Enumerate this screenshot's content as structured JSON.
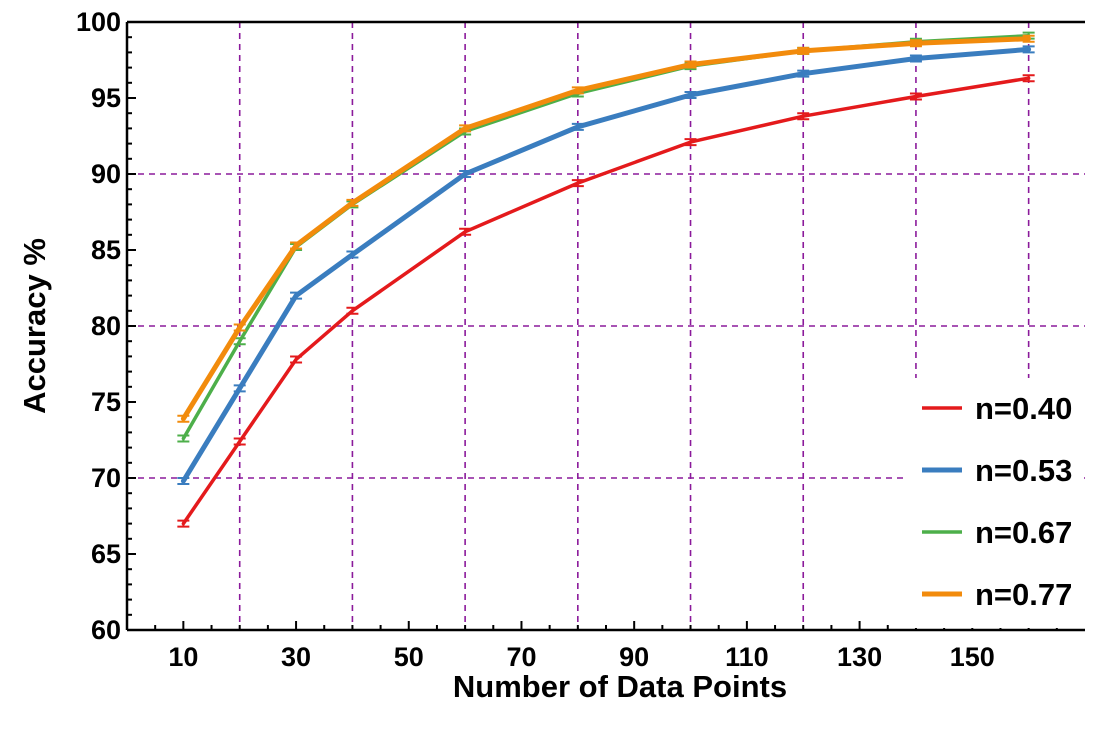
{
  "chart_data": {
    "type": "line",
    "xlabel": "Number of Data Points",
    "ylabel": "Accuracy %",
    "xlim": [
      0,
      170
    ],
    "ylim": [
      60,
      100
    ],
    "x_ticks": [
      10,
      30,
      50,
      70,
      90,
      110,
      130,
      150
    ],
    "y_ticks": [
      60,
      65,
      70,
      75,
      80,
      85,
      90,
      95,
      100
    ],
    "grid_x": [
      20,
      40,
      60,
      80,
      100,
      120,
      140,
      160
    ],
    "grid_y": [
      70,
      80,
      90
    ],
    "grid": true,
    "legend_position": "bottom-right",
    "x": [
      10,
      20,
      30,
      40,
      60,
      80,
      100,
      120,
      140,
      160
    ],
    "series": [
      {
        "name": "n=0.40",
        "color": "#e41a1c",
        "width": 3.5,
        "values": [
          67.0,
          72.4,
          77.8,
          81.0,
          86.2,
          89.4,
          92.1,
          93.8,
          95.1,
          96.3
        ]
      },
      {
        "name": "n=0.53",
        "color": "#3a7dbf",
        "width": 5,
        "values": [
          69.8,
          75.9,
          82.0,
          84.7,
          90.0,
          93.1,
          95.2,
          96.6,
          97.6,
          98.2
        ]
      },
      {
        "name": "n=0.67",
        "color": "#4daf4a",
        "width": 3.5,
        "values": [
          72.6,
          79.0,
          85.2,
          88.0,
          92.8,
          95.3,
          97.1,
          98.1,
          98.7,
          99.1
        ]
      },
      {
        "name": "n=0.77",
        "color": "#f28b0c",
        "width": 5,
        "values": [
          73.9,
          79.9,
          85.3,
          88.1,
          93.0,
          95.5,
          97.2,
          98.1,
          98.6,
          98.9
        ]
      }
    ]
  }
}
